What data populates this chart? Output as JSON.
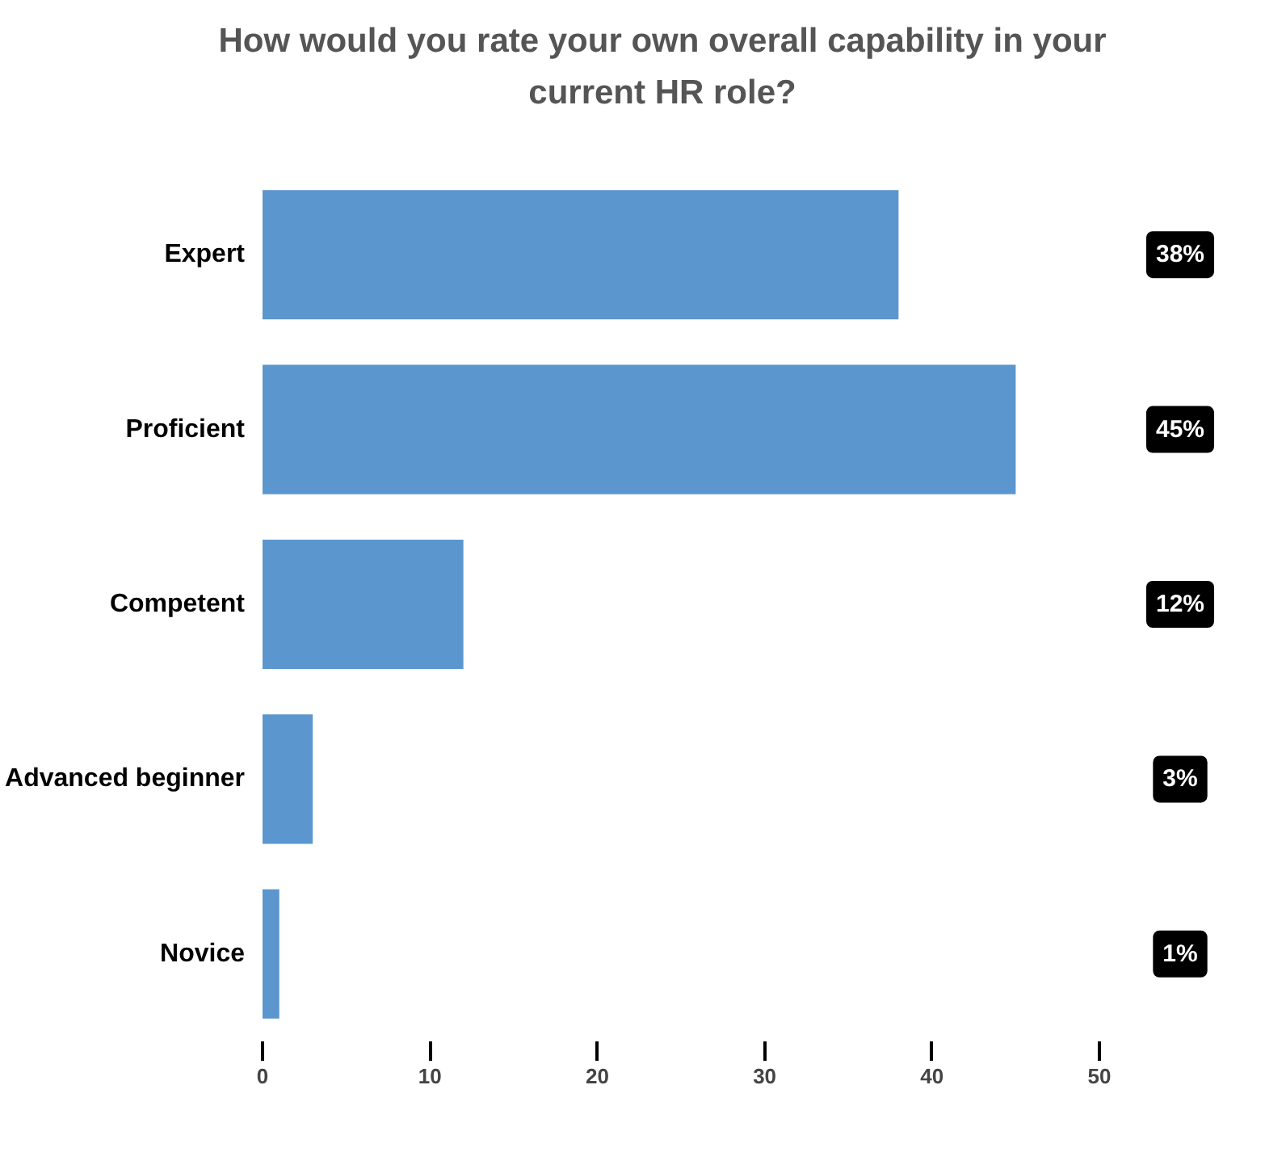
{
  "chart_data": {
    "type": "bar",
    "orientation": "horizontal",
    "title": "How would you rate your own overall capability in your current HR role?",
    "categories": [
      "Expert",
      "Proficient",
      "Competent",
      "Advanced beginner",
      "Novice"
    ],
    "values": [
      38,
      45,
      12,
      3,
      1
    ],
    "value_labels": [
      "38%",
      "45%",
      "12%",
      "3%",
      "1%"
    ],
    "color": "#5b96cf",
    "xlim": [
      0,
      50
    ],
    "xticks": [
      0,
      10,
      20,
      30,
      40,
      50
    ],
    "grid": false
  }
}
